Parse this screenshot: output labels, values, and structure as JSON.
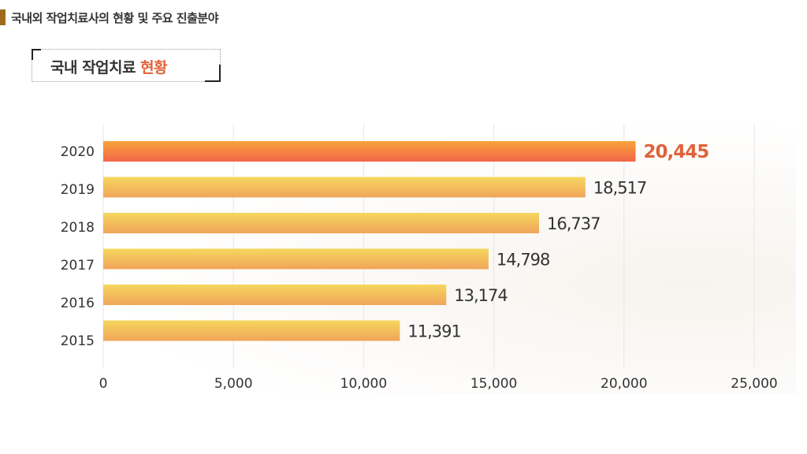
{
  "header": {
    "title": "국내외 작업치료사의 현황 및 주요 진출분야"
  },
  "section": {
    "title_main": "국내 작업치료 ",
    "title_accent": "현황"
  },
  "colors": {
    "header_bar": "#a06a1c",
    "accent": "#e0633a",
    "bar_top": "#f5d75e",
    "bar_bottom": "#f0a45a",
    "highlight_top": "#f8a33a",
    "highlight_bottom": "#f2664a"
  },
  "chart_data": {
    "type": "bar",
    "orientation": "horizontal",
    "categories": [
      "2020",
      "2019",
      "2018",
      "2017",
      "2016",
      "2015"
    ],
    "values": [
      20445,
      18517,
      16737,
      14798,
      13174,
      11391
    ],
    "value_labels": [
      "20,445",
      "18,517",
      "16,737",
      "14,798",
      "13,174",
      "11,391"
    ],
    "highlight_index": 0,
    "xlim": [
      0,
      25000
    ],
    "x_ticks": [
      0,
      5000,
      10000,
      15000,
      20000,
      25000
    ],
    "x_tick_labels": [
      "0",
      "5,000",
      "10,000",
      "15,000",
      "20,000",
      "25,000"
    ],
    "grid": true,
    "title": "",
    "xlabel": "",
    "ylabel": ""
  }
}
